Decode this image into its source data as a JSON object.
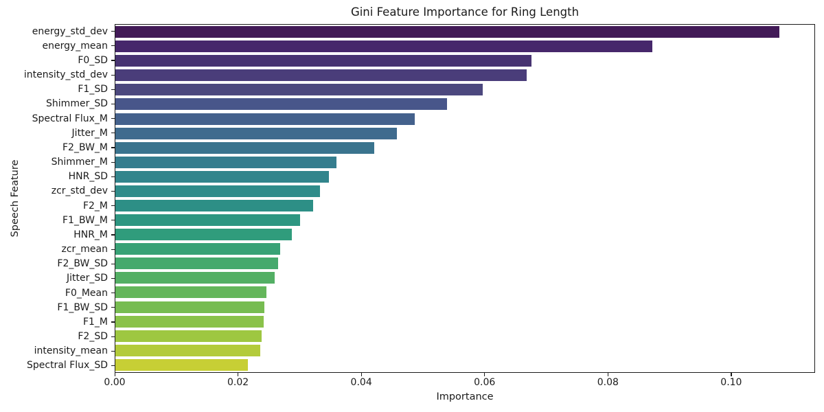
{
  "chart_data": {
    "type": "bar",
    "orientation": "horizontal",
    "title": "Gini Feature Importance for Ring Length",
    "xlabel": "Importance",
    "ylabel": "Speech Feature",
    "grid": false,
    "legend": false,
    "xlim": [
      0,
      0.1136
    ],
    "xticks": {
      "values": [
        0,
        0.02,
        0.04,
        0.06,
        0.08,
        0.1
      ],
      "labels": [
        "0.00",
        "0.02",
        "0.04",
        "0.06",
        "0.08",
        "0.10"
      ]
    },
    "categories": [
      "energy_std_dev",
      "energy_mean",
      "F0_SD",
      "intensity_std_dev",
      "F1_SD",
      "Shimmer_SD",
      "Spectral Flux_M",
      "Jitter_M",
      "F2_BW_M",
      "Shimmer_M",
      "HNR_SD",
      "zcr_std_dev",
      "F2_M",
      "F1_BW_M",
      "HNR_M",
      "zcr_mean",
      "F2_BW_SD",
      "Jitter_SD",
      "F0_Mean",
      "F1_BW_SD",
      "F1_M",
      "F2_SD",
      "intensity_mean",
      "Spectral Flux_SD"
    ],
    "values": [
      0.1079,
      0.0873,
      0.0676,
      0.0668,
      0.0597,
      0.0539,
      0.0487,
      0.0458,
      0.0421,
      0.0359,
      0.0347,
      0.0332,
      0.0321,
      0.03,
      0.0287,
      0.0268,
      0.0265,
      0.0259,
      0.0246,
      0.0242,
      0.0241,
      0.0238,
      0.0235,
      0.0215
    ],
    "bar_colors": [
      "#421a57",
      "#46276b",
      "#473371",
      "#4a3d7a",
      "#4c487e",
      "#48568a",
      "#44618c",
      "#3f6b8e",
      "#3a748e",
      "#357d8e",
      "#32858c",
      "#2f8c8a",
      "#2d8f86",
      "#2d9681",
      "#309c7c",
      "#38a276",
      "#45a96d",
      "#53af64",
      "#64b65b",
      "#77bc51",
      "#8ac24a",
      "#9ec741",
      "#b3cb3b",
      "#c7cf35"
    ],
    "spine_color": "#1a1a1a"
  }
}
